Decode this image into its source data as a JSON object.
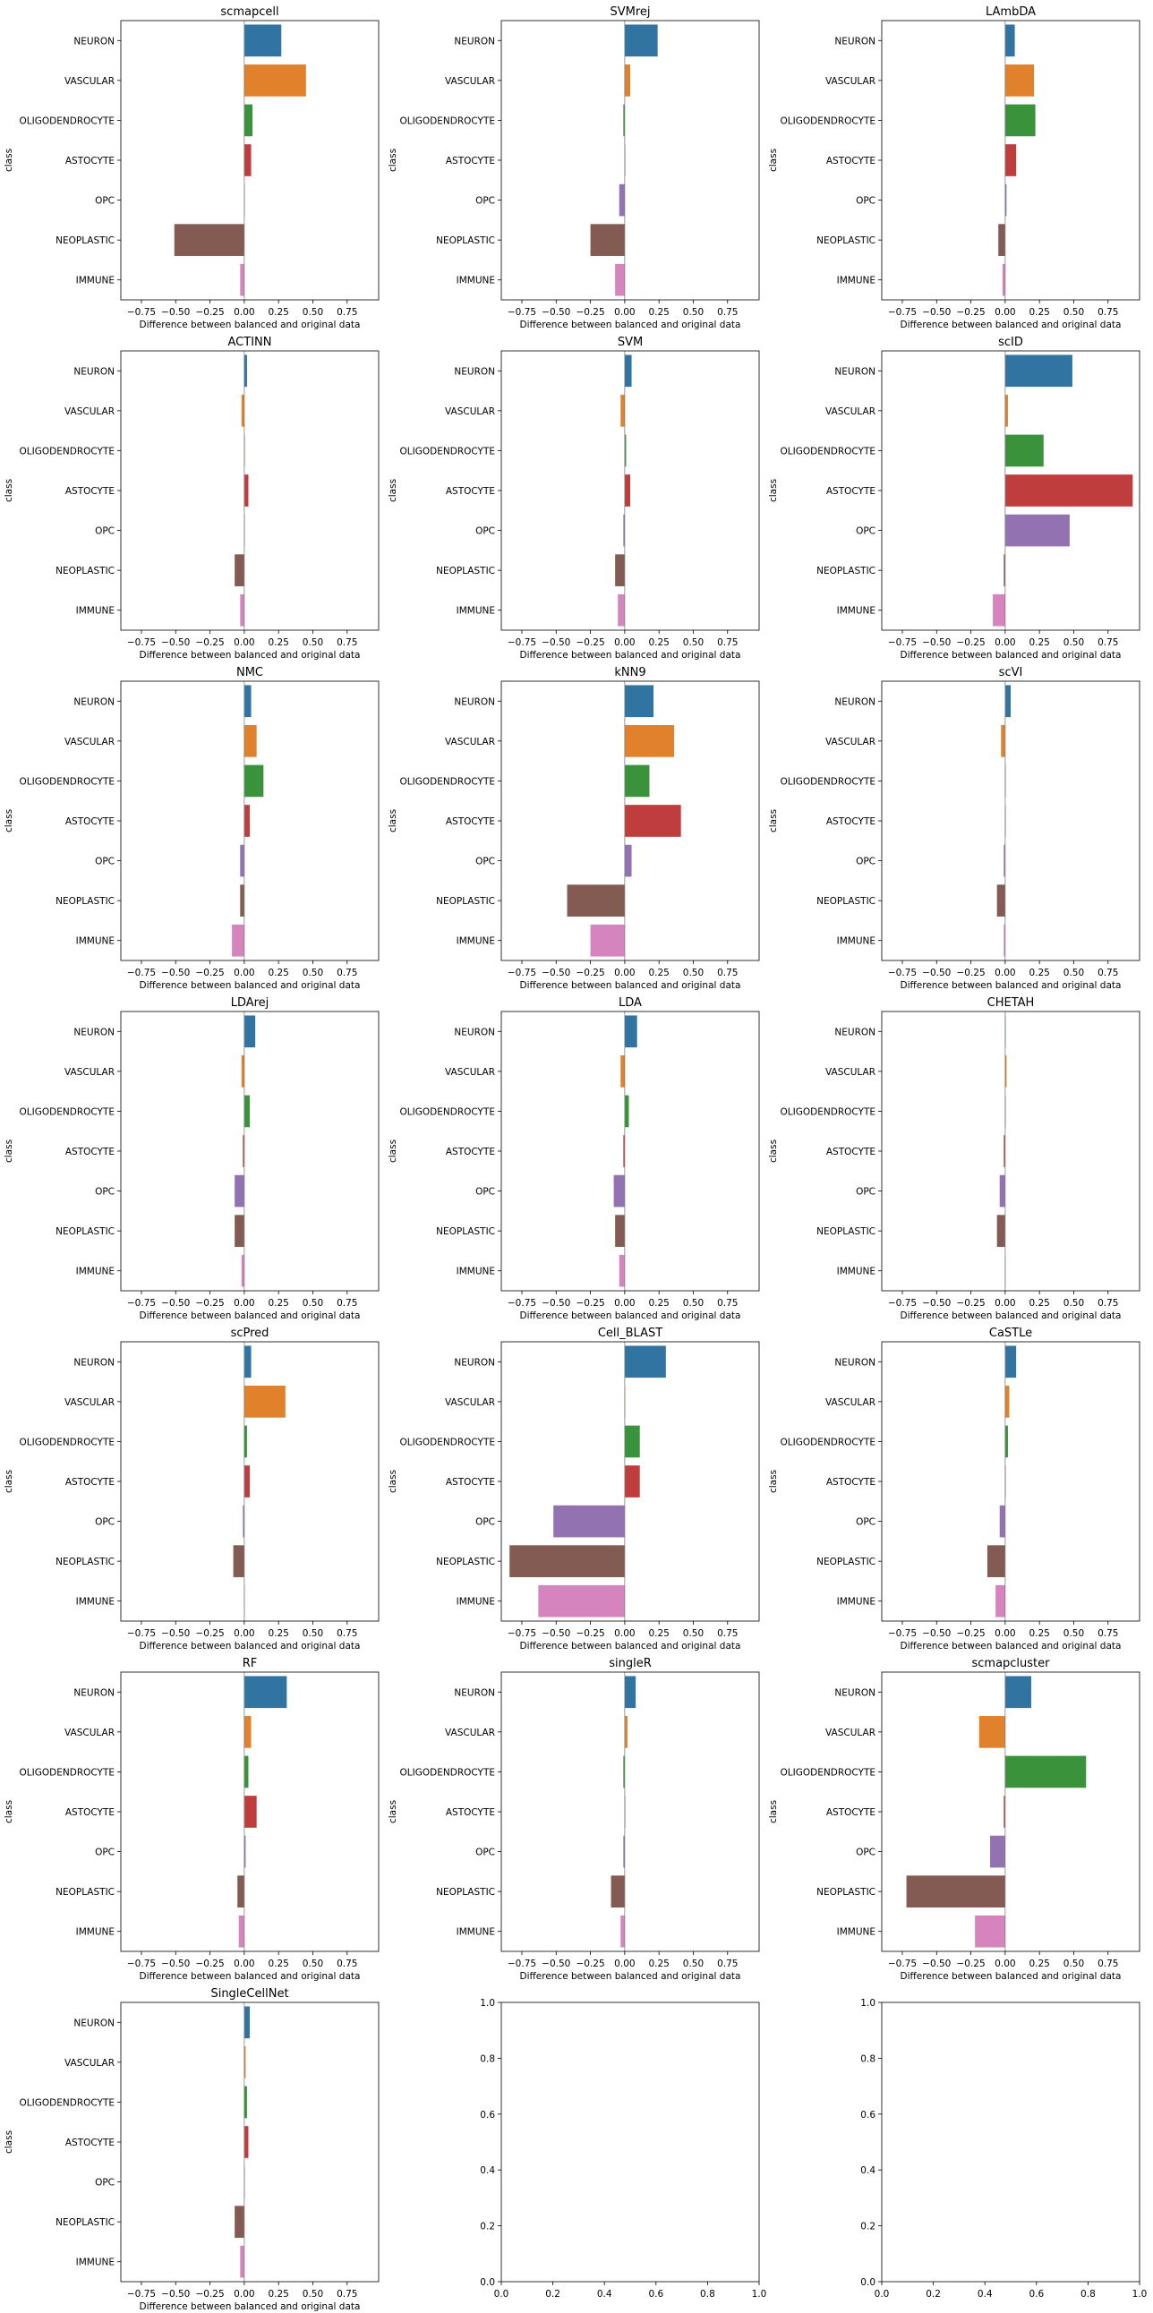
{
  "colors": {
    "NEURON": "#3274a1",
    "VASCULAR": "#e1812c",
    "OLIGODENDROCYTE": "#3a923a",
    "ASTOCYTE": "#c03d3e",
    "OPC": "#9372b2",
    "NEOPLASTIC": "#845b53",
    "IMMUNE": "#d684bd"
  },
  "chart_data": [
    {
      "type": "bar",
      "orientation": "horizontal",
      "title": "scmapcell",
      "categories": [
        "NEURON",
        "VASCULAR",
        "OLIGODENDROCYTE",
        "ASTOCYTE",
        "OPC",
        "NEOPLASTIC",
        "IMMUNE"
      ],
      "values": [
        0.27,
        0.45,
        0.06,
        0.05,
        0.0,
        -0.51,
        -0.03
      ],
      "xlabel": "Difference between balanced and original data",
      "ylabel": "class",
      "xticks": [
        "−0.75",
        "−0.50",
        "−0.25",
        "0.00",
        "0.25",
        "0.50",
        "0.75"
      ],
      "xlim": [
        -0.9,
        0.98
      ]
    },
    {
      "type": "bar",
      "orientation": "horizontal",
      "title": "SVMrej",
      "categories": [
        "NEURON",
        "VASCULAR",
        "OLIGODENDROCYTE",
        "ASTOCYTE",
        "OPC",
        "NEOPLASTIC",
        "IMMUNE"
      ],
      "values": [
        0.24,
        0.04,
        -0.01,
        0.0,
        -0.04,
        -0.25,
        -0.07
      ],
      "xlabel": "Difference between balanced and original data",
      "ylabel": "class",
      "xticks": [
        "−0.75",
        "−0.50",
        "−0.25",
        "0.00",
        "0.25",
        "0.50",
        "0.75"
      ],
      "xlim": [
        -0.9,
        0.98
      ]
    },
    {
      "type": "bar",
      "orientation": "horizontal",
      "title": "LAmbDA",
      "categories": [
        "NEURON",
        "VASCULAR",
        "OLIGODENDROCYTE",
        "ASTOCYTE",
        "OPC",
        "NEOPLASTIC",
        "IMMUNE"
      ],
      "values": [
        0.07,
        0.21,
        0.22,
        0.08,
        0.01,
        -0.05,
        -0.02
      ],
      "xlabel": "Difference between balanced and original data",
      "ylabel": "class",
      "xticks": [
        "−0.75",
        "−0.50",
        "−0.25",
        "0.00",
        "0.25",
        "0.50",
        "0.75"
      ],
      "xlim": [
        -0.9,
        0.98
      ]
    },
    {
      "type": "bar",
      "orientation": "horizontal",
      "title": "ACTINN",
      "categories": [
        "NEURON",
        "VASCULAR",
        "OLIGODENDROCYTE",
        "ASTOCYTE",
        "OPC",
        "NEOPLASTIC",
        "IMMUNE"
      ],
      "values": [
        0.02,
        -0.02,
        0.0,
        0.03,
        0.0,
        -0.07,
        -0.03
      ],
      "xlabel": "Difference between balanced and original data",
      "ylabel": "class",
      "xticks": [
        "−0.75",
        "−0.50",
        "−0.25",
        "0.00",
        "0.25",
        "0.50",
        "0.75"
      ],
      "xlim": [
        -0.9,
        0.98
      ]
    },
    {
      "type": "bar",
      "orientation": "horizontal",
      "title": "SVM",
      "categories": [
        "NEURON",
        "VASCULAR",
        "OLIGODENDROCYTE",
        "ASTOCYTE",
        "OPC",
        "NEOPLASTIC",
        "IMMUNE"
      ],
      "values": [
        0.05,
        -0.03,
        0.01,
        0.04,
        -0.01,
        -0.07,
        -0.05
      ],
      "xlabel": "Difference between balanced and original data",
      "ylabel": "class",
      "xticks": [
        "−0.75",
        "−0.50",
        "−0.25",
        "0.00",
        "0.25",
        "0.50",
        "0.75"
      ],
      "xlim": [
        -0.9,
        0.98
      ]
    },
    {
      "type": "bar",
      "orientation": "horizontal",
      "title": "scID",
      "categories": [
        "NEURON",
        "VASCULAR",
        "OLIGODENDROCYTE",
        "ASTOCYTE",
        "OPC",
        "NEOPLASTIC",
        "IMMUNE"
      ],
      "values": [
        0.49,
        0.02,
        0.28,
        0.93,
        0.47,
        -0.01,
        -0.09
      ],
      "xlabel": "Difference between balanced and original data",
      "ylabel": "class",
      "xticks": [
        "−0.75",
        "−0.50",
        "−0.25",
        "0.00",
        "0.25",
        "0.50",
        "0.75"
      ],
      "xlim": [
        -0.9,
        0.98
      ]
    },
    {
      "type": "bar",
      "orientation": "horizontal",
      "title": "NMC",
      "categories": [
        "NEURON",
        "VASCULAR",
        "OLIGODENDROCYTE",
        "ASTOCYTE",
        "OPC",
        "NEOPLASTIC",
        "IMMUNE"
      ],
      "values": [
        0.05,
        0.09,
        0.14,
        0.04,
        -0.03,
        -0.03,
        -0.09
      ],
      "xlabel": "Difference between balanced and original data",
      "ylabel": "class",
      "xticks": [
        "−0.75",
        "−0.50",
        "−0.25",
        "0.00",
        "0.25",
        "0.50",
        "0.75"
      ],
      "xlim": [
        -0.9,
        0.98
      ]
    },
    {
      "type": "bar",
      "orientation": "horizontal",
      "title": "kNN9",
      "categories": [
        "NEURON",
        "VASCULAR",
        "OLIGODENDROCYTE",
        "ASTOCYTE",
        "OPC",
        "NEOPLASTIC",
        "IMMUNE"
      ],
      "values": [
        0.21,
        0.36,
        0.18,
        0.41,
        0.05,
        -0.42,
        -0.25
      ],
      "xlabel": "Difference between balanced and original data",
      "ylabel": "class",
      "xticks": [
        "−0.75",
        "−0.50",
        "−0.25",
        "0.00",
        "0.25",
        "0.50",
        "0.75"
      ],
      "xlim": [
        -0.9,
        0.98
      ]
    },
    {
      "type": "bar",
      "orientation": "horizontal",
      "title": "scVI",
      "categories": [
        "NEURON",
        "VASCULAR",
        "OLIGODENDROCYTE",
        "ASTOCYTE",
        "OPC",
        "NEOPLASTIC",
        "IMMUNE"
      ],
      "values": [
        0.04,
        -0.03,
        0.0,
        0.0,
        -0.01,
        -0.06,
        -0.01
      ],
      "xlabel": "Difference between balanced and original data",
      "ylabel": "class",
      "xticks": [
        "−0.75",
        "−0.50",
        "−0.25",
        "0.00",
        "0.25",
        "0.50",
        "0.75"
      ],
      "xlim": [
        -0.9,
        0.98
      ]
    },
    {
      "type": "bar",
      "orientation": "horizontal",
      "title": "LDArej",
      "categories": [
        "NEURON",
        "VASCULAR",
        "OLIGODENDROCYTE",
        "ASTOCYTE",
        "OPC",
        "NEOPLASTIC",
        "IMMUNE"
      ],
      "values": [
        0.08,
        -0.02,
        0.04,
        -0.01,
        -0.07,
        -0.07,
        -0.02
      ],
      "xlabel": "Difference between balanced and original data",
      "ylabel": "class",
      "xticks": [
        "−0.75",
        "−0.50",
        "−0.25",
        "0.00",
        "0.25",
        "0.50",
        "0.75"
      ],
      "xlim": [
        -0.9,
        0.98
      ]
    },
    {
      "type": "bar",
      "orientation": "horizontal",
      "title": "LDA",
      "categories": [
        "NEURON",
        "VASCULAR",
        "OLIGODENDROCYTE",
        "ASTOCYTE",
        "OPC",
        "NEOPLASTIC",
        "IMMUNE"
      ],
      "values": [
        0.09,
        -0.03,
        0.03,
        -0.01,
        -0.08,
        -0.07,
        -0.04
      ],
      "xlabel": "Difference between balanced and original data",
      "ylabel": "class",
      "xticks": [
        "−0.75",
        "−0.50",
        "−0.25",
        "0.00",
        "0.25",
        "0.50",
        "0.75"
      ],
      "xlim": [
        -0.9,
        0.98
      ]
    },
    {
      "type": "bar",
      "orientation": "horizontal",
      "title": "CHETAH",
      "categories": [
        "NEURON",
        "VASCULAR",
        "OLIGODENDROCYTE",
        "ASTOCYTE",
        "OPC",
        "NEOPLASTIC",
        "IMMUNE"
      ],
      "values": [
        0.0,
        0.01,
        0.0,
        -0.01,
        -0.04,
        -0.06,
        0.0
      ],
      "xlabel": "Difference between balanced and original data",
      "ylabel": "class",
      "xticks": [
        "−0.75",
        "−0.50",
        "−0.25",
        "0.00",
        "0.25",
        "0.50",
        "0.75"
      ],
      "xlim": [
        -0.9,
        0.98
      ]
    },
    {
      "type": "bar",
      "orientation": "horizontal",
      "title": "scPred",
      "categories": [
        "NEURON",
        "VASCULAR",
        "OLIGODENDROCYTE",
        "ASTOCYTE",
        "OPC",
        "NEOPLASTIC",
        "IMMUNE"
      ],
      "values": [
        0.05,
        0.3,
        0.02,
        0.04,
        -0.01,
        -0.08,
        0.0
      ],
      "xlabel": "Difference between balanced and original data",
      "ylabel": "class",
      "xticks": [
        "−0.75",
        "−0.50",
        "−0.25",
        "0.00",
        "0.25",
        "0.50",
        "0.75"
      ],
      "xlim": [
        -0.9,
        0.98
      ]
    },
    {
      "type": "bar",
      "orientation": "horizontal",
      "title": "Cell_BLAST",
      "categories": [
        "NEURON",
        "VASCULAR",
        "OLIGODENDROCYTE",
        "ASTOCYTE",
        "OPC",
        "NEOPLASTIC",
        "IMMUNE"
      ],
      "values": [
        0.3,
        0.0,
        0.11,
        0.11,
        -0.52,
        -0.84,
        -0.63
      ],
      "xlabel": "Difference between balanced and original data",
      "ylabel": "class",
      "xticks": [
        "−0.75",
        "−0.50",
        "−0.25",
        "0.00",
        "0.25",
        "0.50",
        "0.75"
      ],
      "xlim": [
        -0.9,
        0.98
      ]
    },
    {
      "type": "bar",
      "orientation": "horizontal",
      "title": "CaSTLe",
      "categories": [
        "NEURON",
        "VASCULAR",
        "OLIGODENDROCYTE",
        "ASTOCYTE",
        "OPC",
        "NEOPLASTIC",
        "IMMUNE"
      ],
      "values": [
        0.08,
        0.03,
        0.02,
        0.0,
        -0.04,
        -0.13,
        -0.07
      ],
      "xlabel": "Difference between balanced and original data",
      "ylabel": "class",
      "xticks": [
        "−0.75",
        "−0.50",
        "−0.25",
        "0.00",
        "0.25",
        "0.50",
        "0.75"
      ],
      "xlim": [
        -0.9,
        0.98
      ]
    },
    {
      "type": "bar",
      "orientation": "horizontal",
      "title": "RF",
      "categories": [
        "NEURON",
        "VASCULAR",
        "OLIGODENDROCYTE",
        "ASTOCYTE",
        "OPC",
        "NEOPLASTIC",
        "IMMUNE"
      ],
      "values": [
        0.31,
        0.05,
        0.03,
        0.09,
        0.01,
        -0.05,
        -0.04
      ],
      "xlabel": "Difference between balanced and original data",
      "ylabel": "class",
      "xticks": [
        "−0.75",
        "−0.50",
        "−0.25",
        "0.00",
        "0.25",
        "0.50",
        "0.75"
      ],
      "xlim": [
        -0.9,
        0.98
      ]
    },
    {
      "type": "bar",
      "orientation": "horizontal",
      "title": "singleR",
      "categories": [
        "NEURON",
        "VASCULAR",
        "OLIGODENDROCYTE",
        "ASTOCYTE",
        "OPC",
        "NEOPLASTIC",
        "IMMUNE"
      ],
      "values": [
        0.08,
        0.02,
        -0.01,
        0.0,
        -0.01,
        -0.1,
        -0.03
      ],
      "xlabel": "Difference between balanced and original data",
      "ylabel": "class",
      "xticks": [
        "−0.75",
        "−0.50",
        "−0.25",
        "0.00",
        "0.25",
        "0.50",
        "0.75"
      ],
      "xlim": [
        -0.9,
        0.98
      ]
    },
    {
      "type": "bar",
      "orientation": "horizontal",
      "title": "scmapcluster",
      "categories": [
        "NEURON",
        "VASCULAR",
        "OLIGODENDROCYTE",
        "ASTOCYTE",
        "OPC",
        "NEOPLASTIC",
        "IMMUNE"
      ],
      "values": [
        0.19,
        -0.19,
        0.59,
        -0.01,
        -0.11,
        -0.72,
        -0.22
      ],
      "xlabel": "Difference between balanced and original data",
      "ylabel": "class",
      "xticks": [
        "−0.75",
        "−0.50",
        "−0.25",
        "0.00",
        "0.25",
        "0.50",
        "0.75"
      ],
      "xlim": [
        -0.9,
        0.98
      ]
    },
    {
      "type": "bar",
      "orientation": "horizontal",
      "title": "SingleCellNet",
      "categories": [
        "NEURON",
        "VASCULAR",
        "OLIGODENDROCYTE",
        "ASTOCYTE",
        "OPC",
        "NEOPLASTIC",
        "IMMUNE"
      ],
      "values": [
        0.04,
        0.01,
        0.02,
        0.03,
        0.0,
        -0.07,
        -0.03
      ],
      "xlabel": "Difference between balanced and original data",
      "ylabel": "class",
      "xticks": [
        "−0.75",
        "−0.50",
        "−0.25",
        "0.00",
        "0.25",
        "0.50",
        "0.75"
      ],
      "xlim": [
        -0.9,
        0.98
      ]
    },
    {
      "type": "empty",
      "title": "",
      "xticks": [
        "0.0",
        "0.2",
        "0.4",
        "0.6",
        "0.8",
        "1.0"
      ],
      "yticks": [
        "0.0",
        "0.2",
        "0.4",
        "0.6",
        "0.8",
        "1.0"
      ],
      "xlim": [
        0,
        1
      ],
      "ylim": [
        0,
        1
      ]
    },
    {
      "type": "empty",
      "title": "",
      "xticks": [
        "0.0",
        "0.2",
        "0.4",
        "0.6",
        "0.8",
        "1.0"
      ],
      "yticks": [
        "0.0",
        "0.2",
        "0.4",
        "0.6",
        "0.8",
        "1.0"
      ],
      "xlim": [
        0,
        1
      ],
      "ylim": [
        0,
        1
      ]
    }
  ]
}
